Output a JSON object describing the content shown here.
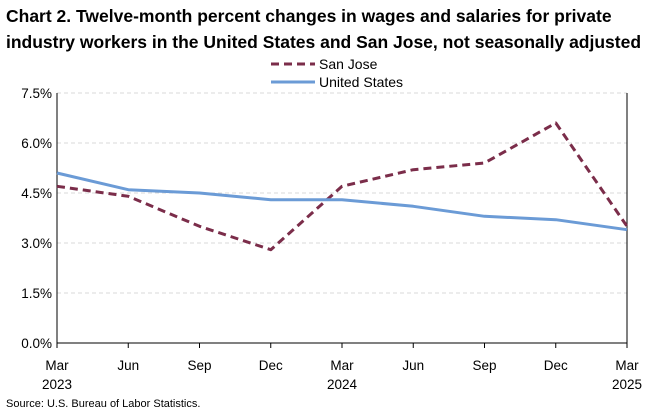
{
  "chart_data": {
    "type": "line",
    "title": "Chart 2. Twelve-month percent changes in wages and salaries for private industry workers in the United States and San Jose, not seasonally adjusted",
    "categories": [
      "Mar 2023",
      "Jun",
      "Sep",
      "Dec",
      "Mar 2024",
      "Jun",
      "Sep",
      "Dec",
      "Mar 2025"
    ],
    "x_tick_labels": [
      {
        "month": "Mar",
        "year": "2023"
      },
      {
        "month": "Jun",
        "year": ""
      },
      {
        "month": "Sep",
        "year": ""
      },
      {
        "month": "Dec",
        "year": ""
      },
      {
        "month": "Mar",
        "year": "2024"
      },
      {
        "month": "Jun",
        "year": ""
      },
      {
        "month": "Sep",
        "year": ""
      },
      {
        "month": "Dec",
        "year": ""
      },
      {
        "month": "Mar",
        "year": "2025"
      }
    ],
    "y_ticks": [
      0,
      1.5,
      3.0,
      4.5,
      6.0,
      7.5
    ],
    "y_tick_labels": [
      "0.0%",
      "1.5%",
      "3.0%",
      "4.5%",
      "6.0%",
      "7.5%"
    ],
    "ylim": [
      0,
      7.5
    ],
    "xlabel": "",
    "ylabel": "",
    "grid": true,
    "legend_position": "top-center",
    "series": [
      {
        "name": "San Jose",
        "values": [
          4.7,
          4.4,
          3.5,
          2.8,
          4.7,
          5.2,
          5.4,
          6.6,
          3.5
        ],
        "color": "#7b2d4a",
        "style": "dashed"
      },
      {
        "name": "United States",
        "values": [
          5.1,
          4.6,
          4.5,
          4.3,
          4.3,
          4.1,
          3.8,
          3.7,
          3.4
        ],
        "color": "#6b9bd6",
        "style": "solid"
      }
    ]
  },
  "source": "Source: U.S. Bureau of Labor Statistics."
}
